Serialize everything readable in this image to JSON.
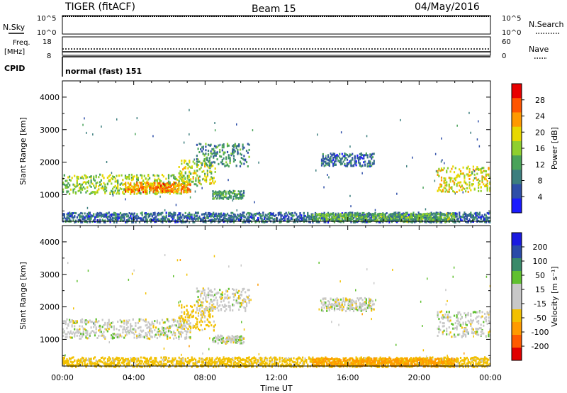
{
  "header": {
    "radar": "TIGER (fitACF)",
    "beam": "Beam 15",
    "date": "04/May/2016"
  },
  "top_panels": {
    "nsky_label": "N.Sky",
    "nsearch_label": "N.Search",
    "noise_ticks_left": [
      "10^5",
      "10^0"
    ],
    "noise_ticks_right": [
      "10^5",
      "10^0"
    ],
    "freq_label": "Freq.",
    "freq_unit": "[MHz]",
    "freq_ticks": [
      "18",
      "8"
    ],
    "nave_label": "Nave",
    "nave_ticks": [
      "60",
      "0"
    ],
    "cpid_label": "CPID",
    "cpid_text": "normal (fast) 151"
  },
  "colors": {
    "power_scale": [
      "#1a1aff",
      "#2e4ea8",
      "#3c7e7e",
      "#4aa35a",
      "#8fcf2e",
      "#e8d800",
      "#ff9900",
      "#ff5500",
      "#e80000"
    ],
    "velocity_scale": [
      "#e00000",
      "#ff5a00",
      "#ff9a00",
      "#f2c000",
      "#c8c8c8",
      "#c8c8c8",
      "#60c030",
      "#3a8a6a",
      "#2a4aa8",
      "#1a1ae0"
    ]
  },
  "time_axis": {
    "ticks": [
      "00:00",
      "04:00",
      "08:00",
      "12:00",
      "16:00",
      "20:00",
      "00:00"
    ],
    "label": "Time UT"
  },
  "chart_data": [
    {
      "type": "heatmap",
      "panel": "power",
      "ylabel": "Slant Range [km]",
      "ylim": [
        180,
        4500
      ],
      "yticks": [
        "1000",
        "2000",
        "3000",
        "4000"
      ],
      "xlim": [
        0,
        24
      ],
      "colorbar_label": "Power [dB]",
      "colorbar_ticks": [
        "4",
        "8",
        "12",
        "16",
        "20",
        "24",
        "28"
      ],
      "colorbar_range": [
        0,
        30
      ],
      "regions": [
        {
          "t0": 0.0,
          "t1": 7.2,
          "r0": 1050,
          "r1": 1650,
          "level": 0.5
        },
        {
          "t0": 3.5,
          "t1": 7.2,
          "r0": 1100,
          "r1": 1400,
          "level": 0.78
        },
        {
          "t0": 6.5,
          "t1": 8.6,
          "r0": 1300,
          "r1": 2100,
          "level": 0.55
        },
        {
          "t0": 7.5,
          "t1": 10.5,
          "r0": 1900,
          "r1": 2600,
          "level": 0.3
        },
        {
          "t0": 8.4,
          "t1": 10.2,
          "r0": 900,
          "r1": 1150,
          "level": 0.35
        },
        {
          "t0": 14.5,
          "t1": 17.5,
          "r0": 1900,
          "r1": 2300,
          "level": 0.2
        },
        {
          "t0": 21.0,
          "t1": 24.0,
          "r0": 1100,
          "r1": 1900,
          "level": 0.6
        },
        {
          "t0": 0.0,
          "t1": 24.0,
          "r0": 180,
          "r1": 480,
          "level": 0.2
        },
        {
          "t0": 14.0,
          "t1": 22.0,
          "r0": 200,
          "r1": 450,
          "level": 0.4
        }
      ]
    },
    {
      "type": "heatmap",
      "panel": "velocity",
      "ylabel": "Slant Range [km]",
      "ylim": [
        180,
        4500
      ],
      "yticks": [
        "1000",
        "2000",
        "3000",
        "4000"
      ],
      "xlim": [
        0,
        24
      ],
      "colorbar_label": "Velocity [m s⁻¹]",
      "colorbar_ticks": [
        "-200",
        "-100",
        "-50",
        "-15",
        "15",
        "50",
        "100",
        "200"
      ],
      "regions": [
        {
          "t0": 0.0,
          "t1": 7.2,
          "r0": 1050,
          "r1": 1650,
          "value": 0
        },
        {
          "t0": 6.5,
          "t1": 8.6,
          "r0": 1300,
          "r1": 2100,
          "value": -30
        },
        {
          "t0": 7.5,
          "t1": 10.5,
          "r0": 1900,
          "r1": 2600,
          "value": 0
        },
        {
          "t0": 8.4,
          "t1": 10.2,
          "r0": 900,
          "r1": 1150,
          "value": 0
        },
        {
          "t0": 14.5,
          "t1": 17.5,
          "r0": 1900,
          "r1": 2300,
          "value": 0
        },
        {
          "t0": 21.0,
          "t1": 24.0,
          "r0": 1100,
          "r1": 1900,
          "value": 0
        },
        {
          "t0": 0.0,
          "t1": 24.0,
          "r0": 180,
          "r1": 480,
          "value": -30
        },
        {
          "t0": 14.0,
          "t1": 22.0,
          "r0": 200,
          "r1": 450,
          "value": -60
        }
      ]
    }
  ]
}
